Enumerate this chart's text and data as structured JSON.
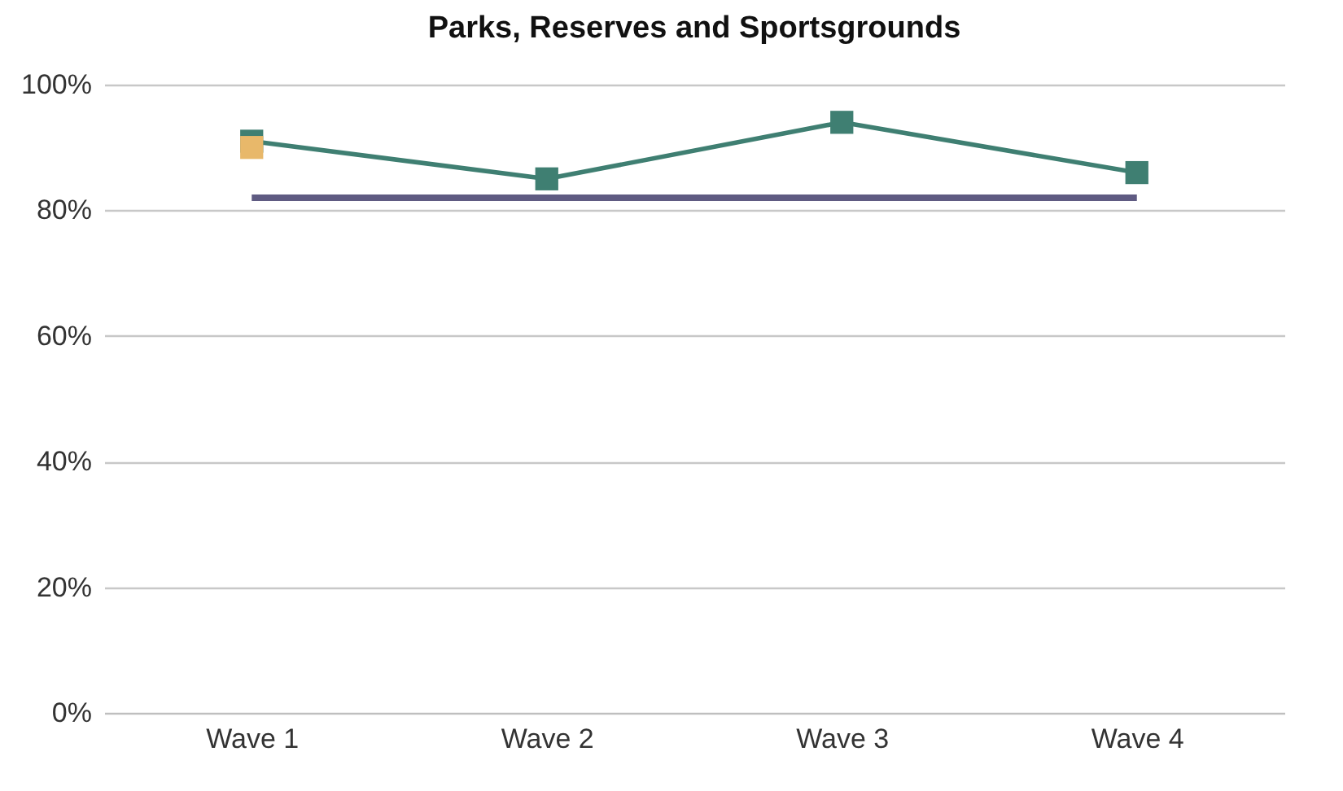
{
  "chart_data": {
    "type": "line",
    "title": "Parks, Reserves and Sportsgrounds",
    "categories": [
      "Wave 1",
      "Wave 2",
      "Wave 3",
      "Wave 4"
    ],
    "series": [
      {
        "color": "#3f7f72",
        "values": [
          91,
          85,
          94,
          86
        ],
        "marker": "square"
      },
      {
        "color": "#5f5b82",
        "values": [
          82,
          82,
          82,
          82
        ],
        "marker": "none"
      },
      {
        "type": "scatter",
        "color": "#e8b86a",
        "x": [
          "Wave 1"
        ],
        "values": [
          90
        ],
        "marker": "square"
      }
    ],
    "ylim": [
      0,
      100
    ],
    "yticks": [
      {
        "value": 0,
        "label": "0%"
      },
      {
        "value": 20,
        "label": "20%"
      },
      {
        "value": 40,
        "label": "40%"
      },
      {
        "value": 60,
        "label": "60%"
      },
      {
        "value": 80,
        "label": "80%"
      },
      {
        "value": 100,
        "label": "100%"
      }
    ],
    "grid": "y"
  }
}
